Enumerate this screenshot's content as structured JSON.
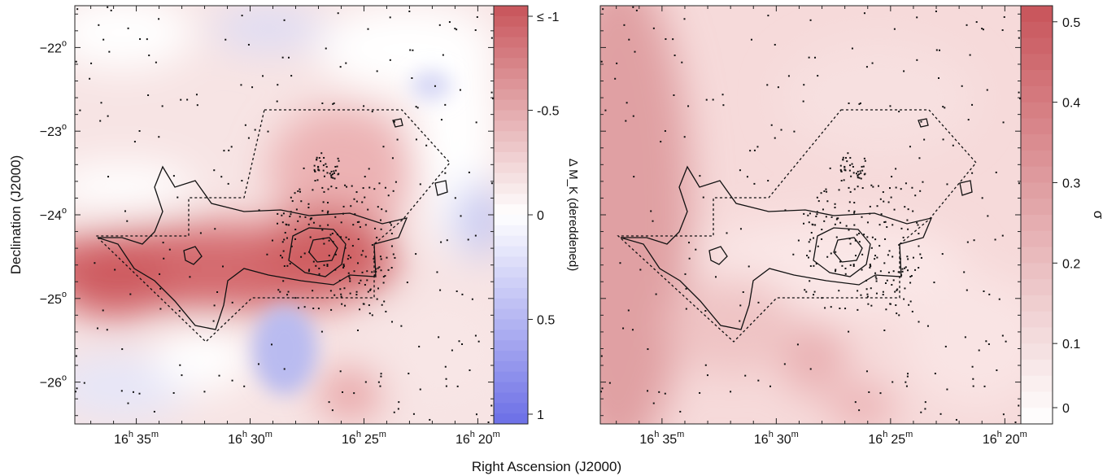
{
  "figure": {
    "xlabel": "Right Ascension (J2000)",
    "ylabel": "Declination (J2000)"
  },
  "chart_data": [
    {
      "type": "heatmap",
      "panel": "left",
      "xlabel": "Right Ascension (J2000)",
      "ylabel": "Declination (J2000)",
      "colorbar_label": "Δ M_K (dereddened)",
      "colorbar_ticks": [
        "≤ -1",
        "-0.5",
        "0",
        "0.5",
        "1"
      ],
      "colorbar_tick_values": [
        -1,
        -0.5,
        0,
        0.5,
        1
      ],
      "colorbar_range": [
        1,
        -1
      ],
      "colormap": {
        "negative": "#c8545a",
        "zero": "#ffffff",
        "positive": "#6b6ee6"
      },
      "x_ticks": [
        {
          "h": "16",
          "m": "35",
          "value_min": 995
        },
        {
          "h": "16",
          "m": "30",
          "value_min": 990
        },
        {
          "h": "16",
          "m": "25",
          "value_min": 985
        },
        {
          "h": "16",
          "m": "20",
          "value_min": 980
        }
      ],
      "x_range_min": [
        997.7,
        979.3
      ],
      "y_ticks": [
        {
          "label": "−22",
          "sup": "o",
          "value": -22
        },
        {
          "label": "−23",
          "sup": "o",
          "value": -23
        },
        {
          "label": "−24",
          "sup": "o",
          "value": -24
        },
        {
          "label": "−25",
          "sup": "o",
          "value": -25
        },
        {
          "label": "−26",
          "sup": "o",
          "value": -26
        }
      ],
      "y_range": [
        -26.5,
        -21.5
      ]
    },
    {
      "type": "heatmap",
      "panel": "right",
      "colorbar_label": "σ",
      "colorbar_ticks": [
        "0.5",
        "0.4",
        "0.3",
        "0.2",
        "0.1",
        "0"
      ],
      "colorbar_tick_values": [
        0.5,
        0.4,
        0.3,
        0.2,
        0.1,
        0
      ],
      "colorbar_range": [
        0,
        0.52
      ],
      "colormap": {
        "low": "#ffffff",
        "high": "#c8545a"
      },
      "x_ticks": [
        {
          "h": "16",
          "m": "35",
          "value_min": 995
        },
        {
          "h": "16",
          "m": "30",
          "value_min": 990
        },
        {
          "h": "16",
          "m": "25",
          "value_min": 985
        },
        {
          "h": "16",
          "m": "20",
          "value_min": 980
        }
      ],
      "x_range_min": [
        997.7,
        979.3
      ],
      "y_range": [
        -26.5,
        -21.5
      ]
    }
  ]
}
